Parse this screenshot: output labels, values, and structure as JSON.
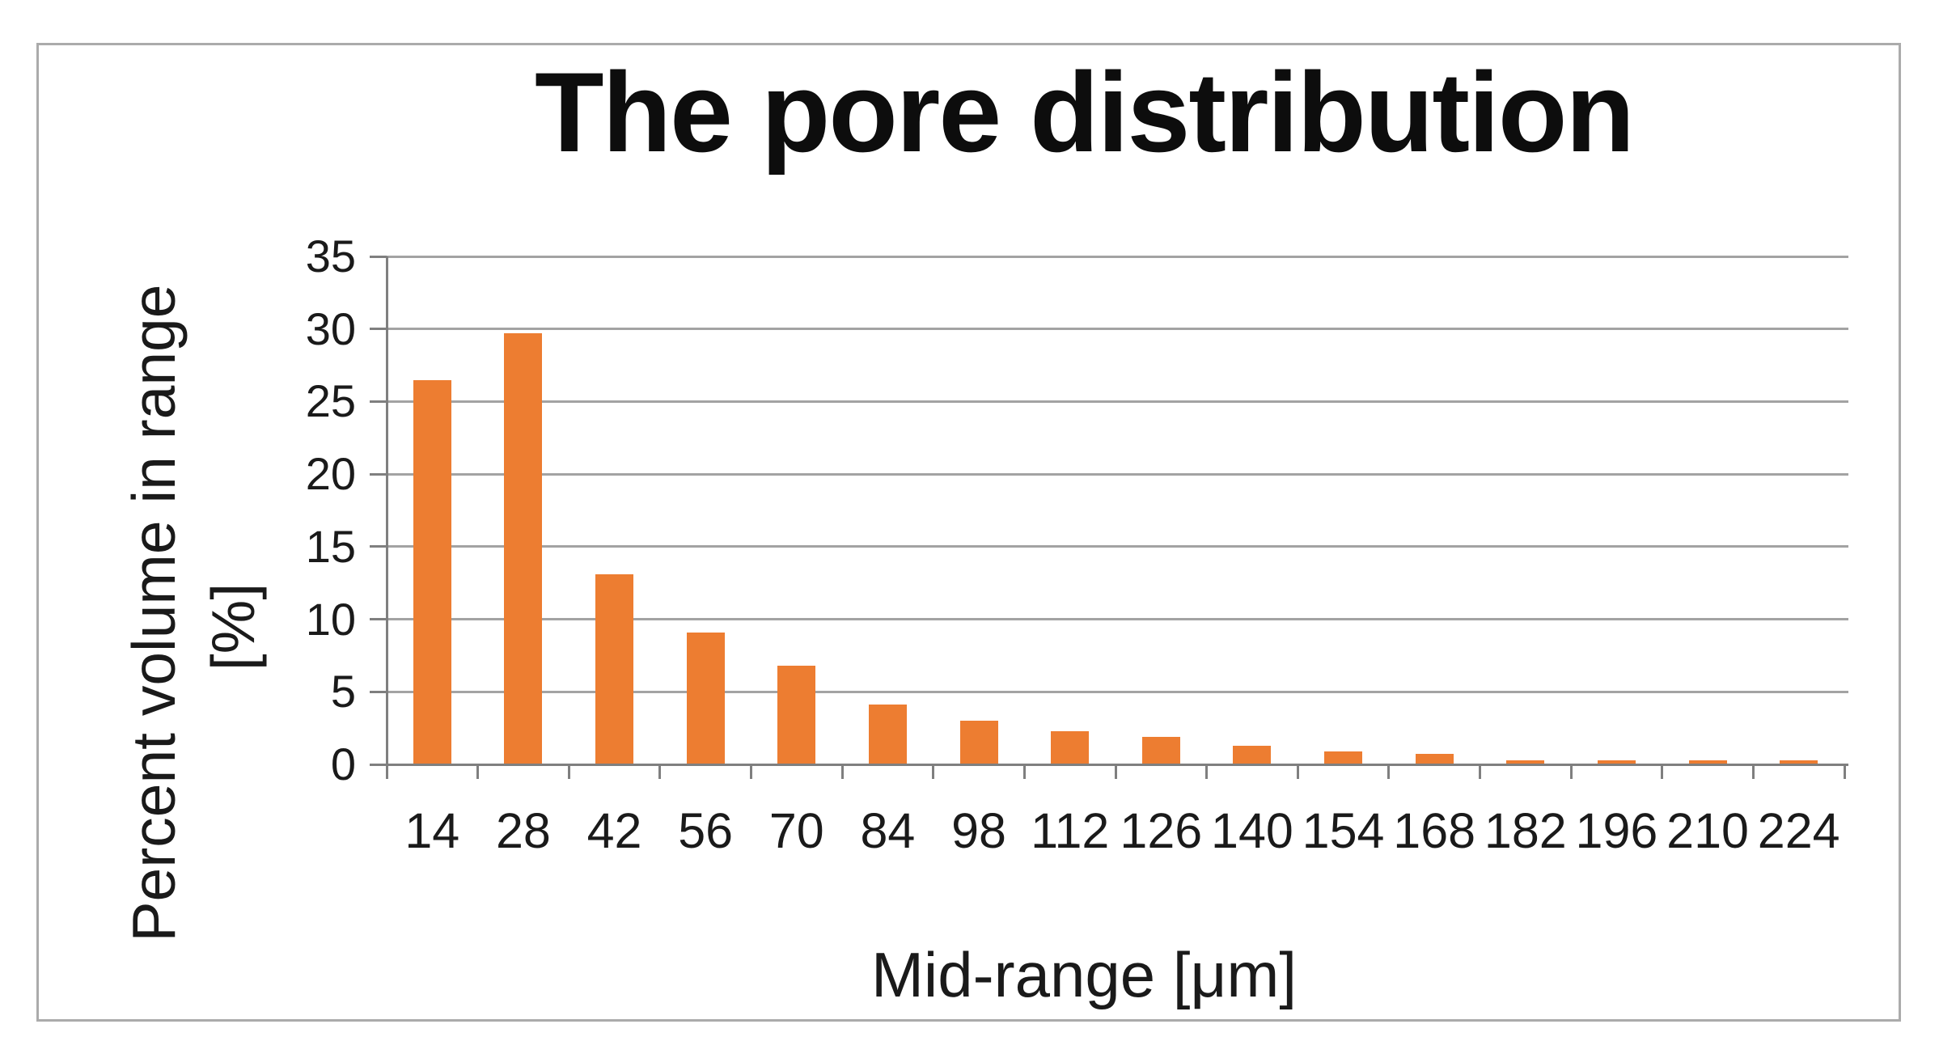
{
  "chart_data": {
    "type": "bar",
    "title": "The pore distribution",
    "xlabel": "Mid-range [μm]",
    "ylabel_line1": "Percent volume in range",
    "ylabel_line2": "[%]",
    "categories": [
      "14",
      "28",
      "42",
      "56",
      "70",
      "84",
      "98",
      "112",
      "126",
      "140",
      "154",
      "168",
      "182",
      "196",
      "210",
      "224"
    ],
    "values": [
      26.5,
      29.7,
      13.1,
      9.1,
      6.8,
      4.1,
      3.0,
      2.3,
      1.9,
      1.3,
      0.9,
      0.7,
      0.3,
      0.3,
      0.3,
      0.3
    ],
    "ylim": [
      0,
      35
    ],
    "yticks": [
      0,
      5,
      10,
      15,
      20,
      25,
      30,
      35
    ],
    "grid": true,
    "legend": "none",
    "colors": {
      "bar": "#ED7D31",
      "gridline": "#a3a3a3",
      "axis": "#7f7f7f",
      "border": "#ababab",
      "text": "#1a1a1a"
    }
  }
}
